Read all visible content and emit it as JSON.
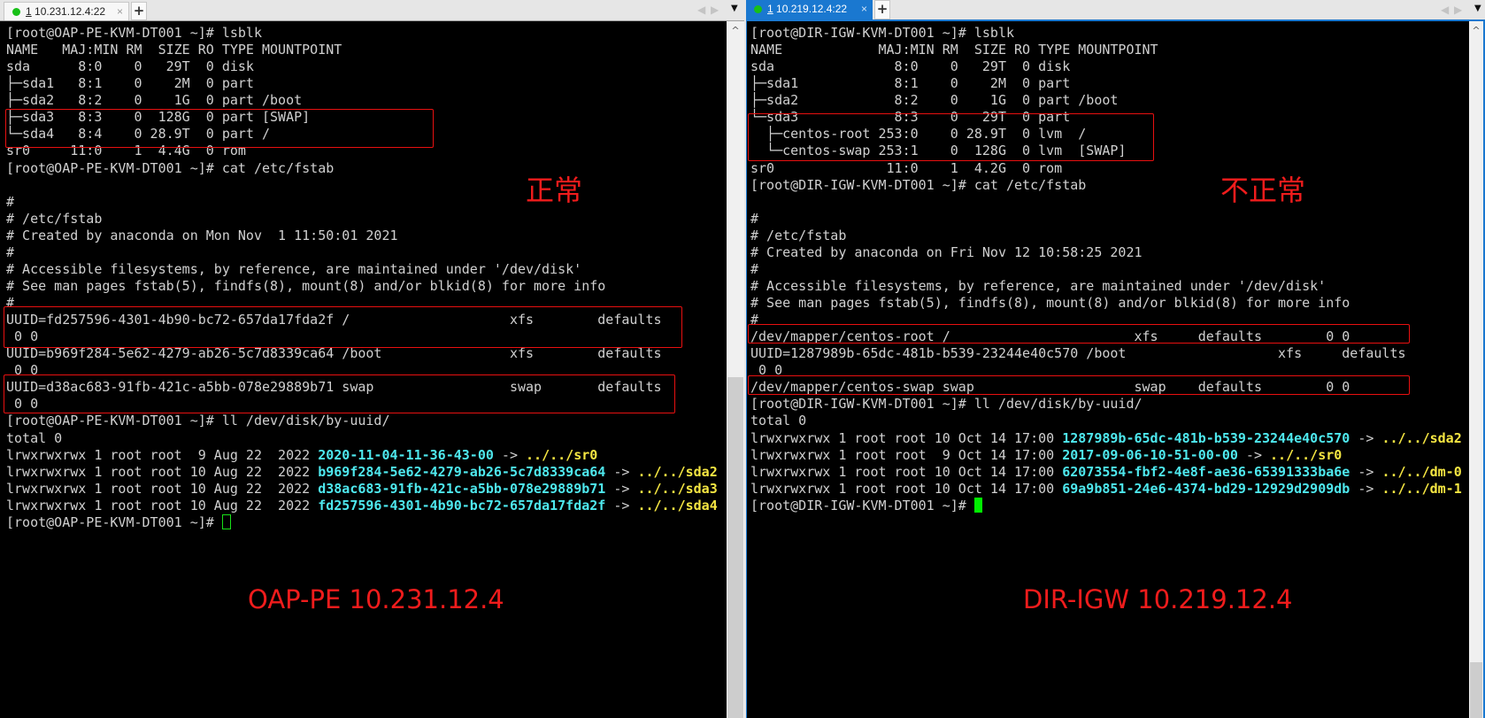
{
  "left": {
    "tab": {
      "index": "1",
      "title": "10.231.12.4:22",
      "close": "×",
      "status_color": "#18c018"
    },
    "new_tab": "+",
    "lines": [
      "[root@OAP-PE-KVM-DT001 ~]# lsblk",
      "NAME   MAJ:MIN RM  SIZE RO TYPE MOUNTPOINT",
      "sda      8:0    0   29T  0 disk",
      "├─sda1   8:1    0    2M  0 part",
      "├─sda2   8:2    0    1G  0 part /boot",
      "├─sda3   8:3    0  128G  0 part [SWAP]",
      "└─sda4   8:4    0 28.9T  0 part /",
      "sr0     11:0    1  4.4G  0 rom",
      "[root@OAP-PE-KVM-DT001 ~]# cat /etc/fstab",
      "",
      "#",
      "# /etc/fstab",
      "# Created by anaconda on Mon Nov  1 11:50:01 2021",
      "#",
      "# Accessible filesystems, by reference, are maintained under '/dev/disk'",
      "# See man pages fstab(5), findfs(8), mount(8) and/or blkid(8) for more info",
      "#",
      "UUID=fd257596-4301-4b90-bc72-657da17fda2f /                    xfs        defaults",
      " 0 0",
      "UUID=b969f284-5e62-4279-ab26-5c7d8339ca64 /boot                xfs        defaults",
      " 0 0",
      "UUID=d38ac683-91fb-421c-a5bb-078e29889b71 swap                 swap       defaults",
      " 0 0",
      "[root@OAP-PE-KVM-DT001 ~]# ll /dev/disk/by-uuid/",
      "total 0",
      {
        "pre": "lrwxrwxrwx 1 root root  9 Aug 22  2022 ",
        "name": "2020-11-04-11-36-43-00",
        "arrow": " -> ",
        "target": "../../sr0"
      },
      {
        "pre": "lrwxrwxrwx 1 root root 10 Aug 22  2022 ",
        "name": "b969f284-5e62-4279-ab26-5c7d8339ca64",
        "arrow": " -> ",
        "target": "../../sda2"
      },
      {
        "pre": "lrwxrwxrwx 1 root root 10 Aug 22  2022 ",
        "name": "d38ac683-91fb-421c-a5bb-078e29889b71",
        "arrow": " -> ",
        "target": "../../sda3"
      },
      {
        "pre": "lrwxrwxrwx 1 root root 10 Aug 22  2022 ",
        "name": "fd257596-4301-4b90-bc72-657da17fda2f",
        "arrow": " -> ",
        "target": "../../sda4"
      },
      {
        "prompt": "[root@OAP-PE-KVM-DT001 ~]# ",
        "cursor": "outline"
      }
    ],
    "annotation_status": "正常",
    "annotation_host": "OAP-PE 10.231.12.4"
  },
  "right": {
    "tab": {
      "index": "1",
      "title": "10.219.12.4:22",
      "close": "×",
      "status_color": "#18c018"
    },
    "new_tab": "+",
    "lines": [
      "[root@DIR-IGW-KVM-DT001 ~]# lsblk",
      "NAME            MAJ:MIN RM  SIZE RO TYPE MOUNTPOINT",
      "sda               8:0    0   29T  0 disk",
      "├─sda1            8:1    0    2M  0 part",
      "├─sda2            8:2    0    1G  0 part /boot",
      "└─sda3            8:3    0   29T  0 part",
      "  ├─centos-root 253:0    0 28.9T  0 lvm  /",
      "  └─centos-swap 253:1    0  128G  0 lvm  [SWAP]",
      "sr0              11:0    1  4.2G  0 rom",
      "[root@DIR-IGW-KVM-DT001 ~]# cat /etc/fstab",
      "",
      "#",
      "# /etc/fstab",
      "# Created by anaconda on Fri Nov 12 10:58:25 2021",
      "#",
      "# Accessible filesystems, by reference, are maintained under '/dev/disk'",
      "# See man pages fstab(5), findfs(8), mount(8) and/or blkid(8) for more info",
      "#",
      "/dev/mapper/centos-root /                       xfs     defaults        0 0",
      "UUID=1287989b-65dc-481b-b539-23244e40c570 /boot                   xfs     defaults",
      " 0 0",
      "/dev/mapper/centos-swap swap                    swap    defaults        0 0",
      "[root@DIR-IGW-KVM-DT001 ~]# ll /dev/disk/by-uuid/",
      "total 0",
      {
        "pre": "lrwxrwxrwx 1 root root 10 Oct 14 17:00 ",
        "name": "1287989b-65dc-481b-b539-23244e40c570",
        "arrow": " -> ",
        "target": "../../sda2"
      },
      {
        "pre": "lrwxrwxrwx 1 root root  9 Oct 14 17:00 ",
        "name": "2017-09-06-10-51-00-00",
        "arrow": " -> ",
        "target": "../../sr0"
      },
      {
        "pre": "lrwxrwxrwx 1 root root 10 Oct 14 17:00 ",
        "name": "62073554-fbf2-4e8f-ae36-65391333ba6e",
        "arrow": " -> ",
        "target": "../../dm-0"
      },
      {
        "pre": "lrwxrwxrwx 1 root root 10 Oct 14 17:00 ",
        "name": "69a9b851-24e6-4374-bd29-12929d2909db",
        "arrow": " -> ",
        "target": "../../dm-1"
      },
      {
        "prompt": "[root@DIR-IGW-KVM-DT001 ~]# ",
        "cursor": "filled"
      }
    ],
    "annotation_status": "不正常",
    "annotation_host": "DIR-IGW 10.219.12.4"
  },
  "colors": {
    "terminal_bg": "#000000",
    "text": "#d0d0d0",
    "symlink": "#4ee8ee",
    "target": "#f5e642",
    "annotation": "#f01c1c",
    "focus": "#1a78d0"
  },
  "icons": {
    "nav_prev": "◀",
    "nav_next": "▶",
    "tab_menu": "▼",
    "scroll_up": "^"
  }
}
